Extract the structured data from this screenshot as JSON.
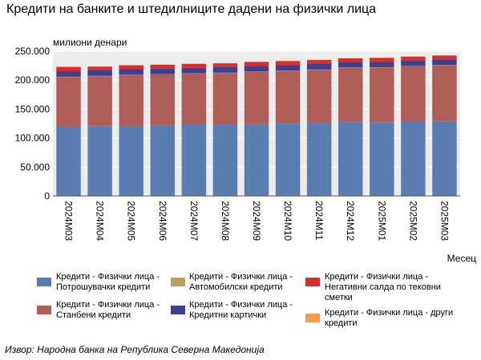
{
  "chart_data": {
    "type": "bar",
    "stacked": true,
    "title": "Кредити на банките и штедилниците дадени на физички лица",
    "ylabel": "милиони денари",
    "xlabel": "Месец",
    "ylim": [
      0,
      250000
    ],
    "yticks": [
      0,
      50000,
      100000,
      150000,
      200000,
      250000
    ],
    "ytick_labels": [
      "0",
      "50.000",
      "100.000",
      "150.000",
      "200.000",
      "250.000"
    ],
    "grid": true,
    "legend_position": "bottom",
    "categories": [
      "2024M03",
      "2024M04",
      "2024M05",
      "2024M06",
      "2024M07",
      "2024M08",
      "2024M09",
      "2024M10",
      "2024M11",
      "2024M12",
      "2025M01",
      "2025M02",
      "2025M03"
    ],
    "series": [
      {
        "name": "Кредити - Физички лица - Потрошувачки кредити",
        "color": "#5a7db1",
        "values": [
          119500,
          120500,
          121500,
          122000,
          123000,
          123500,
          124500,
          125500,
          126500,
          128000,
          127500,
          128500,
          129500
        ]
      },
      {
        "name": "Кредити - Физички лица - Станбени кредити",
        "color": "#b05c57",
        "values": [
          86000,
          86500,
          87500,
          88000,
          88500,
          89000,
          90000,
          90500,
          91500,
          93500,
          94500,
          95500,
          96500
        ]
      },
      {
        "name": "Кредити - Физички лица - Автомобилски кредити",
        "color": "#bba05a",
        "values": [
          400,
          400,
          400,
          400,
          400,
          400,
          400,
          400,
          400,
          400,
          400,
          400,
          400
        ]
      },
      {
        "name": "Кредити - Физички лица - Кредитни картички",
        "color": "#3e3f8e",
        "values": [
          9500,
          9500,
          9500,
          9500,
          9500,
          9500,
          9500,
          9500,
          9500,
          9500,
          9500,
          9500,
          9500
        ]
      },
      {
        "name": "Кредити - Физички лица - Негативни салда по тековни сметки",
        "color": "#dc2c2c",
        "values": [
          7200,
          6500,
          6800,
          6600,
          6800,
          6700,
          7000,
          7100,
          6900,
          6400,
          6600,
          6800,
          6700
        ]
      },
      {
        "name": "Кредити - Физички лица - други кредити",
        "color": "#f59b4f",
        "values": [
          1000,
          400,
          400,
          400,
          400,
          400,
          400,
          400,
          400,
          400,
          400,
          400,
          400
        ]
      }
    ]
  },
  "source": "Извор: Народна банка на Република Северна Македонија"
}
